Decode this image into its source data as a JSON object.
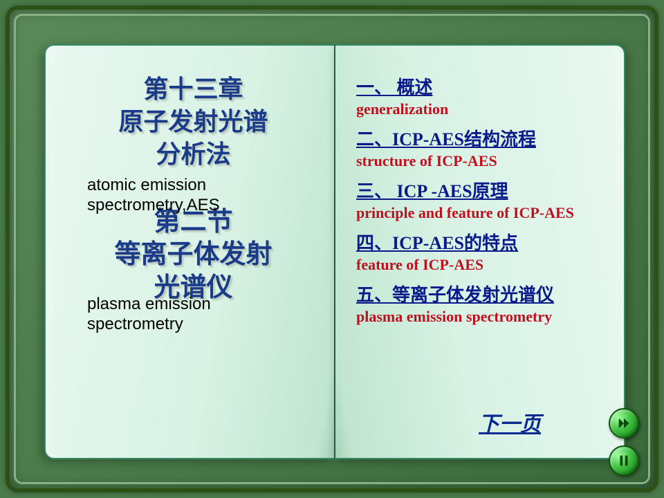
{
  "colors": {
    "slide_bg": "#4a7a4a",
    "page_bg_light": "#e8f8f0",
    "page_bg_shade": "#c0e5d0",
    "title_blue": "#1a3a8a",
    "link_blue": "#0a1a8a",
    "sub_red": "#c01020",
    "btn_green": "#40c040"
  },
  "layout": {
    "slide_w": 960,
    "slide_h": 720,
    "title_fontsize": 36,
    "link_fontsize": 26,
    "sub_fontsize": 22
  },
  "left": {
    "chapter_l1": "第十三章",
    "chapter_l2": "原子发射光谱",
    "chapter_l3": "分析法",
    "chapter_en_l1": "atomic emission",
    "chapter_en_l2": "spectrometry,AES",
    "section_l1": "第二节",
    "section_l2": "等离子体发射",
    "section_l3": "光谱仪",
    "section_en_l1": "plasma emission",
    "section_en_l2": "spectrometry"
  },
  "right": {
    "items": [
      {
        "link": "一、 概述",
        "sub": "generalization"
      },
      {
        "link": "二、ICP-AES结构流程",
        "sub": "structure of ICP-AES"
      },
      {
        "link": "三、 ICP -AES原理",
        "sub": "principle and feature of ICP-AES"
      },
      {
        "link": "四、ICP-AES的特点",
        "sub": "feature of ICP-AES"
      },
      {
        "link": "五、等离子体发射光谱仪",
        "sub": "plasma emission spectrometry"
      }
    ],
    "next": "下一页"
  }
}
